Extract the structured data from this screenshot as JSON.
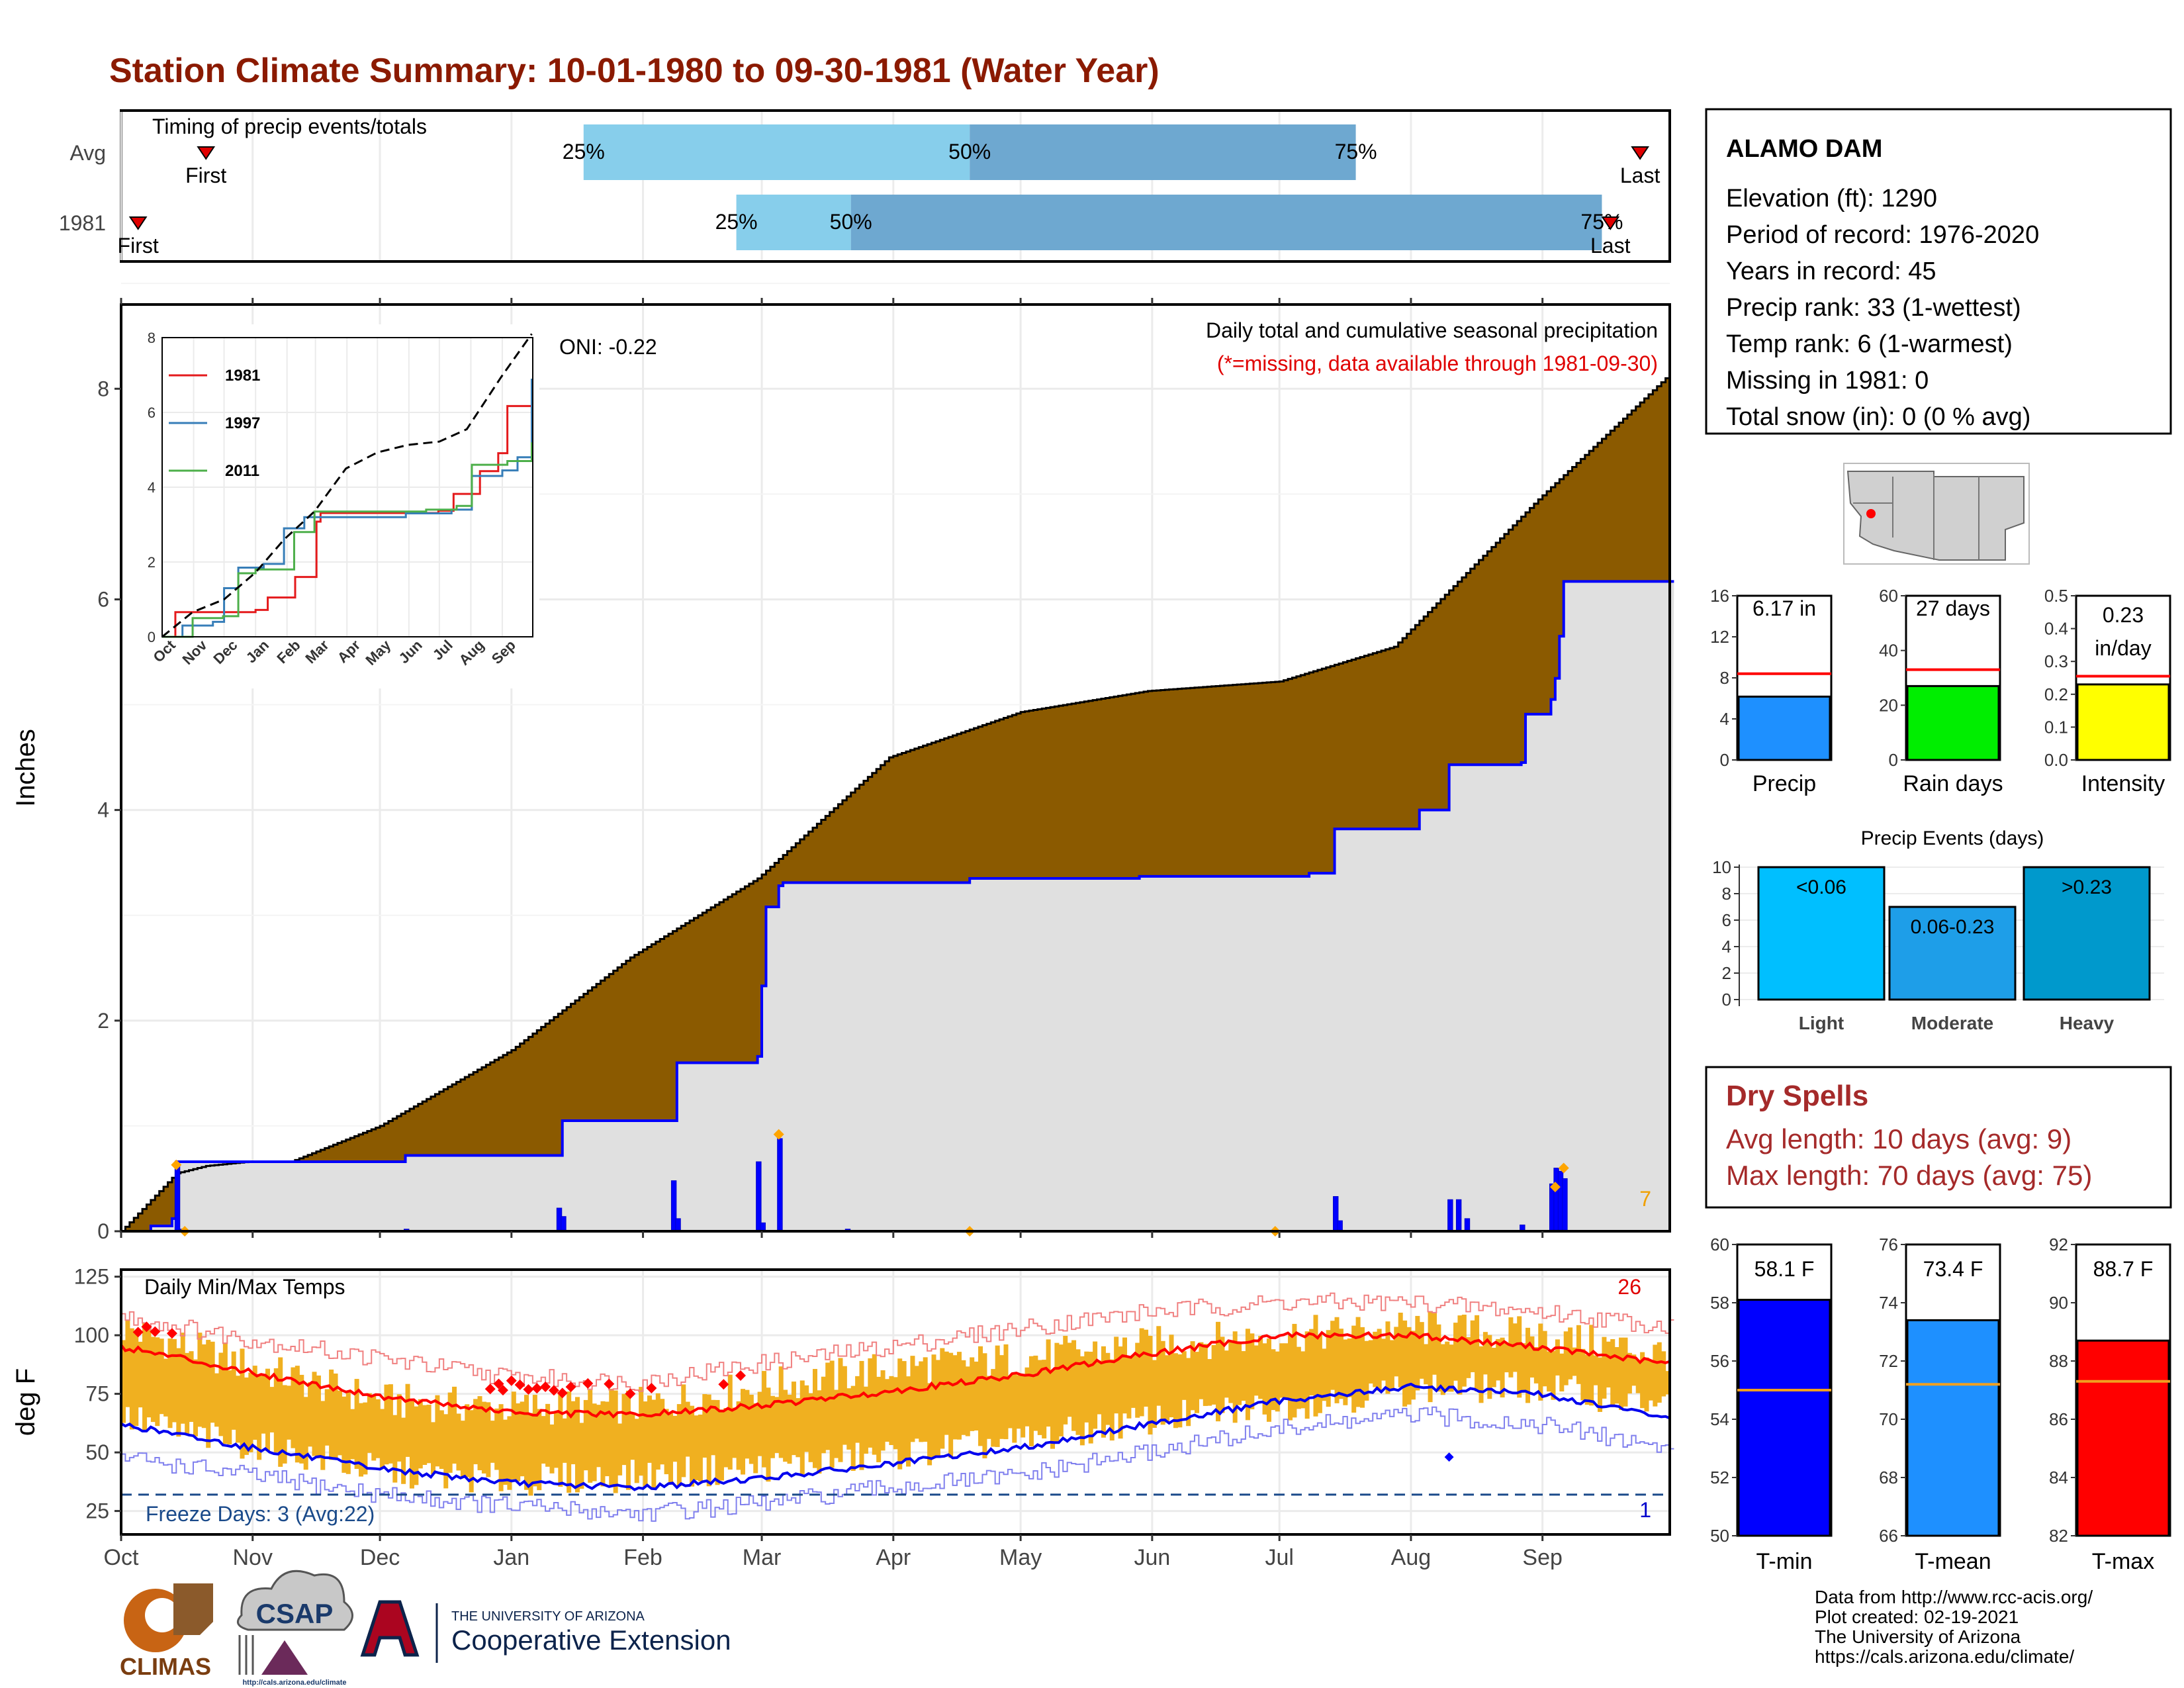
{
  "page_title": "Station Climate Summary: 10-01-1980 to 09-30-1981 (Water Year)",
  "timing_panel": {
    "title": "Timing of precip events/totals",
    "rows": [
      {
        "label": "Avg",
        "first_label": "First",
        "last_label": "Last",
        "first_day": 20,
        "last_day": 358,
        "p25_day": 109,
        "p50_day": 200,
        "p75_day": 291,
        "pct_labels": [
          "25%",
          "50%",
          "75%"
        ]
      },
      {
        "label": "1981",
        "first_label": "First",
        "last_label": "Last",
        "first_day": 4,
        "last_day": 351,
        "p25_day": 145,
        "p50_day": 172,
        "p75_day": 349,
        "pct_labels": [
          "25%",
          "50%",
          "75%"
        ]
      }
    ]
  },
  "precip_panel": {
    "title": "Daily total and cumulative seasonal precipitation",
    "missing_note": "(*=missing, data available through 1981-09-30)",
    "oni_label": "ONI: -0.22",
    "ylabel": "Inches",
    "yticks": [
      "0",
      "2",
      "4",
      "6",
      "8"
    ],
    "corner_count": "7"
  },
  "inset": {
    "legend": [
      {
        "name": "1981",
        "color": "#e41a1c"
      },
      {
        "name": "1997",
        "color": "#377eb8"
      },
      {
        "name": "2011",
        "color": "#4daf4a"
      }
    ],
    "yticks": [
      "0",
      "2",
      "4",
      "6",
      "8"
    ],
    "xticks": [
      "Oct",
      "Nov",
      "Dec",
      "Jan",
      "Feb",
      "Mar",
      "Apr",
      "May",
      "Jun",
      "Jul",
      "Aug",
      "Sep"
    ]
  },
  "temp_panel": {
    "title": "Daily Min/Max Temps",
    "ylabel": "deg F",
    "yticks": [
      "25",
      "50",
      "75",
      "100",
      "125"
    ],
    "freeze_label": "Freeze Days: 3 (Avg:22)",
    "hot_count": "26",
    "cold_count": "1"
  },
  "months": [
    "Oct",
    "Nov",
    "Dec",
    "Jan",
    "Feb",
    "Mar",
    "Apr",
    "May",
    "Jun",
    "Jul",
    "Aug",
    "Sep"
  ],
  "station": {
    "name": "ALAMO DAM",
    "lines": [
      "Elevation (ft): 1290",
      "Period of record: 1976-2020",
      "Years in record: 45",
      "Precip rank: 33 (1-wettest)",
      "Temp rank: 6 (1-warmest)",
      "Missing in 1981: 0",
      "Total snow (in): 0 (0 % avg)"
    ]
  },
  "mini_bars": [
    {
      "label": "Precip",
      "value_label": "6.17 in",
      "value": 6.17,
      "avg": 8.4,
      "ymax": 16,
      "ticks": [
        "0",
        "4",
        "8",
        "12",
        "16"
      ],
      "color": "#1e90ff"
    },
    {
      "label": "Rain days",
      "value_label": "27 days",
      "value": 27,
      "avg": 33,
      "ymax": 60,
      "ticks": [
        "0",
        "20",
        "40",
        "60"
      ],
      "color": "#00ee00"
    },
    {
      "label": "Intensity",
      "value_label": "0.23 in/day",
      "value": 0.23,
      "avg": 0.255,
      "ymax": 0.5,
      "ticks": [
        "0.0",
        "0.1",
        "0.2",
        "0.3",
        "0.4",
        "0.5"
      ],
      "color": "#ffff00"
    }
  ],
  "precip_events": {
    "title": "Precip Events (days)",
    "ticks": [
      "0",
      "2",
      "4",
      "6",
      "8",
      "10"
    ],
    "ymax": 10,
    "bars": [
      {
        "label": "Light",
        "range": "<0.06",
        "value": 10,
        "color": "#00bfff"
      },
      {
        "label": "Moderate",
        "range": "0.06-0.23",
        "value": 7,
        "color": "#1e9ee8"
      },
      {
        "label": "Heavy",
        "range": ">0.23",
        "value": 10,
        "color": "#0099cc"
      }
    ]
  },
  "dry_spells": {
    "title": "Dry Spells",
    "avg_line": "Avg length: 10 days (avg: 9)",
    "max_line": "Max length: 70 days (avg: 75)"
  },
  "temp_bars": [
    {
      "label": "T-min",
      "value_label": "58.1 F",
      "value": 58.1,
      "avg": 55.0,
      "ymin": 50,
      "ymax": 60,
      "ticks": [
        "50",
        "52",
        "54",
        "56",
        "58",
        "60"
      ],
      "color": "#0000ff"
    },
    {
      "label": "T-mean",
      "value_label": "73.4 F",
      "value": 73.4,
      "avg": 71.2,
      "ymin": 66,
      "ymax": 76,
      "ticks": [
        "66",
        "68",
        "70",
        "72",
        "74",
        "76"
      ],
      "color": "#1e90ff"
    },
    {
      "label": "T-max",
      "value_label": "88.7 F",
      "value": 88.7,
      "avg": 87.3,
      "ymin": 82,
      "ymax": 92,
      "ticks": [
        "82",
        "84",
        "86",
        "88",
        "90",
        "92"
      ],
      "color": "#ff0000"
    }
  ],
  "footer": {
    "lines": [
      "Data from http://www.rcc-acis.org/",
      "Plot created: 02-19-2021",
      "The University of Arizona",
      "https://cals.arizona.edu/climate/"
    ],
    "logo_climas": "CLIMAS",
    "logo_csap": "CSAP",
    "csap_url": "http://cals.arizona.edu/climate",
    "ua_small": "THE UNIVERSITY OF ARIZONA",
    "ua_big": "Cooperative Extension"
  },
  "chart_data": [
    {
      "type": "area",
      "title": "Daily total and cumulative seasonal precipitation",
      "ylabel": "Inches",
      "ylim": [
        0,
        8.8
      ],
      "x_unit": "day of water year (Oct 1 = 0)",
      "observed_cumulative": [
        [
          0,
          0
        ],
        [
          7,
          0.05
        ],
        [
          12,
          0.12
        ],
        [
          13,
          0.66
        ],
        [
          34,
          0.66
        ],
        [
          40,
          0.66
        ],
        [
          67,
          0.72
        ],
        [
          103,
          0.72
        ],
        [
          104,
          1.05
        ],
        [
          130,
          1.05
        ],
        [
          131,
          1.6
        ],
        [
          150,
          1.66
        ],
        [
          151,
          2.33
        ],
        [
          152,
          3.08
        ],
        [
          155,
          3.28
        ],
        [
          156,
          3.31
        ],
        [
          200,
          3.35
        ],
        [
          240,
          3.37
        ],
        [
          272,
          3.37
        ],
        [
          280,
          3.4
        ],
        [
          286,
          3.82
        ],
        [
          305,
          3.82
        ],
        [
          306,
          4.0
        ],
        [
          313,
          4.43
        ],
        [
          330,
          4.45
        ],
        [
          331,
          4.91
        ],
        [
          337,
          5.05
        ],
        [
          338,
          5.25
        ],
        [
          339,
          5.65
        ],
        [
          340,
          6.17
        ],
        [
          364,
          6.17
        ]
      ],
      "average_cumulative": [
        [
          0,
          0
        ],
        [
          13,
          0.55
        ],
        [
          20,
          0.62
        ],
        [
          30,
          0.66
        ],
        [
          40,
          0.66
        ],
        [
          61,
          1.0
        ],
        [
          92,
          1.72
        ],
        [
          120,
          2.6
        ],
        [
          150,
          3.35
        ],
        [
          181,
          4.5
        ],
        [
          212,
          4.93
        ],
        [
          242,
          5.13
        ],
        [
          273,
          5.22
        ],
        [
          300,
          5.55
        ],
        [
          334,
          6.95
        ],
        [
          364,
          8.1
        ]
      ],
      "daily_precip": [
        [
          13,
          0.63
        ],
        [
          14,
          0.02
        ],
        [
          67,
          0.02
        ],
        [
          103,
          0.22
        ],
        [
          104,
          0.14
        ],
        [
          130,
          0.48
        ],
        [
          131,
          0.12
        ],
        [
          150,
          0.66
        ],
        [
          151,
          0.08
        ],
        [
          155,
          0.88
        ],
        [
          171,
          0.02
        ],
        [
          286,
          0.33
        ],
        [
          287,
          0.1
        ],
        [
          313,
          0.3
        ],
        [
          315,
          0.3
        ],
        [
          317,
          0.12
        ],
        [
          330,
          0.06
        ],
        [
          337,
          0.45
        ],
        [
          338,
          0.6
        ],
        [
          339,
          0.57
        ],
        [
          340,
          0.5
        ]
      ],
      "missing_diamonds": [
        [
          13,
          0.63
        ],
        [
          15,
          0
        ],
        [
          155,
          0.92
        ],
        [
          200,
          0
        ],
        [
          272,
          0
        ],
        [
          338,
          0.42
        ],
        [
          340,
          0.6
        ]
      ]
    },
    {
      "type": "line",
      "title": "Cumulative precipitation comparison (inset)",
      "ylim": [
        0,
        8
      ],
      "series": [
        {
          "name": "1981",
          "points": [
            [
              0,
              0
            ],
            [
              13,
              0.66
            ],
            [
              67,
              0.66
            ],
            [
              92,
              0.72
            ],
            [
              104,
              1.05
            ],
            [
              131,
              1.6
            ],
            [
              152,
              3.08
            ],
            [
              156,
              3.31
            ],
            [
              272,
              3.37
            ],
            [
              287,
              3.82
            ],
            [
              313,
              4.43
            ],
            [
              331,
              4.91
            ],
            [
              340,
              6.17
            ],
            [
              364,
              6.17
            ]
          ]
        },
        {
          "name": "1997",
          "points": [
            [
              0,
              0
            ],
            [
              20,
              0.3
            ],
            [
              50,
              0.4
            ],
            [
              61,
              1.3
            ],
            [
              75,
              1.85
            ],
            [
              100,
              1.95
            ],
            [
              120,
              2.9
            ],
            [
              140,
              3.2
            ],
            [
              240,
              3.3
            ],
            [
              285,
              3.4
            ],
            [
              305,
              4.3
            ],
            [
              335,
              4.45
            ],
            [
              350,
              4.8
            ],
            [
              364,
              6.9
            ]
          ]
        },
        {
          "name": "2011",
          "points": [
            [
              0,
              0
            ],
            [
              30,
              0.5
            ],
            [
              60,
              0.55
            ],
            [
              75,
              1.7
            ],
            [
              92,
              1.8
            ],
            [
              130,
              2.8
            ],
            [
              150,
              3.35
            ],
            [
              260,
              3.4
            ],
            [
              290,
              3.5
            ],
            [
              305,
              4.6
            ],
            [
              340,
              4.7
            ],
            [
              364,
              5.2
            ]
          ]
        },
        {
          "name": "",
          "points": [
            [
              0,
              0
            ],
            [
              30,
              0.66
            ],
            [
              61,
              1.0
            ],
            [
              92,
              1.72
            ],
            [
              120,
              2.6
            ],
            [
              150,
              3.35
            ],
            [
              181,
              4.5
            ],
            [
              212,
              4.93
            ],
            [
              242,
              5.13
            ],
            [
              273,
              5.22
            ],
            [
              300,
              5.55
            ],
            [
              334,
              6.95
            ],
            [
              364,
              8.1
            ]
          ]
        }
      ]
    },
    {
      "type": "line",
      "title": "Daily Min/Max Temps",
      "ylabel": "deg F",
      "ylim": [
        15,
        128
      ],
      "freeze_line": 32,
      "series": [
        {
          "name": "",
          "points": [
            [
              0,
              95
            ],
            [
              15,
              90
            ],
            [
              31,
              84
            ],
            [
              61,
              74
            ],
            [
              92,
              67
            ],
            [
              122,
              66
            ],
            [
              151,
              70
            ],
            [
              181,
              76
            ],
            [
              212,
              83
            ],
            [
              242,
              92
            ],
            [
              273,
              100
            ],
            [
              304,
              100
            ],
            [
              334,
              95
            ],
            [
              364,
              88
            ]
          ]
        },
        {
          "name": "",
          "points": [
            [
              0,
              62
            ],
            [
              15,
              57
            ],
            [
              31,
              52
            ],
            [
              61,
              43
            ],
            [
              92,
              37
            ],
            [
              122,
              35
            ],
            [
              151,
              39
            ],
            [
              181,
              45
            ],
            [
              212,
              52
            ],
            [
              242,
              62
            ],
            [
              273,
              72
            ],
            [
              304,
              78
            ],
            [
              334,
              75
            ],
            [
              364,
              65
            ]
          ]
        },
        {
          "name": "",
          "points": [
            [
              0,
              108
            ],
            [
              31,
              98
            ],
            [
              61,
              90
            ],
            [
              92,
              82
            ],
            [
              122,
              80
            ],
            [
              151,
              88
            ],
            [
              181,
              95
            ],
            [
              212,
              103
            ],
            [
              242,
              110
            ],
            [
              273,
              114
            ],
            [
              304,
              114
            ],
            [
              334,
              110
            ],
            [
              364,
              104
            ]
          ]
        },
        {
          "name": "",
          "points": [
            [
              0,
              48
            ],
            [
              31,
              40
            ],
            [
              61,
              32
            ],
            [
              92,
              27
            ],
            [
              122,
              24
            ],
            [
              151,
              28
            ],
            [
              181,
              35
            ],
            [
              212,
              40
            ],
            [
              242,
              50
            ],
            [
              273,
              60
            ],
            [
              304,
              66
            ],
            [
              334,
              62
            ],
            [
              364,
              52
            ]
          ]
        },
        {
          "name": "",
          "points": [
            [
              0,
              103
            ],
            [
              15,
              95
            ],
            [
              31,
              86
            ],
            [
              61,
              72
            ],
            [
              92,
              69
            ],
            [
              122,
              70
            ],
            [
              151,
              78
            ],
            [
              181,
              86
            ],
            [
              212,
              90
            ],
            [
              242,
              96
            ],
            [
              273,
              100
            ],
            [
              304,
              103
            ],
            [
              334,
              100
            ],
            [
              364,
              92
            ]
          ]
        },
        {
          "name": "",
          "points": [
            [
              0,
              65
            ],
            [
              15,
              58
            ],
            [
              31,
              53
            ],
            [
              61,
              42
            ],
            [
              92,
              38
            ],
            [
              122,
              40
            ],
            [
              151,
              44
            ],
            [
              181,
              49
            ],
            [
              212,
              55
            ],
            [
              242,
              64
            ],
            [
              273,
              70
            ],
            [
              304,
              77
            ],
            [
              334,
              78
            ],
            [
              364,
              70
            ]
          ]
        }
      ]
    }
  ]
}
